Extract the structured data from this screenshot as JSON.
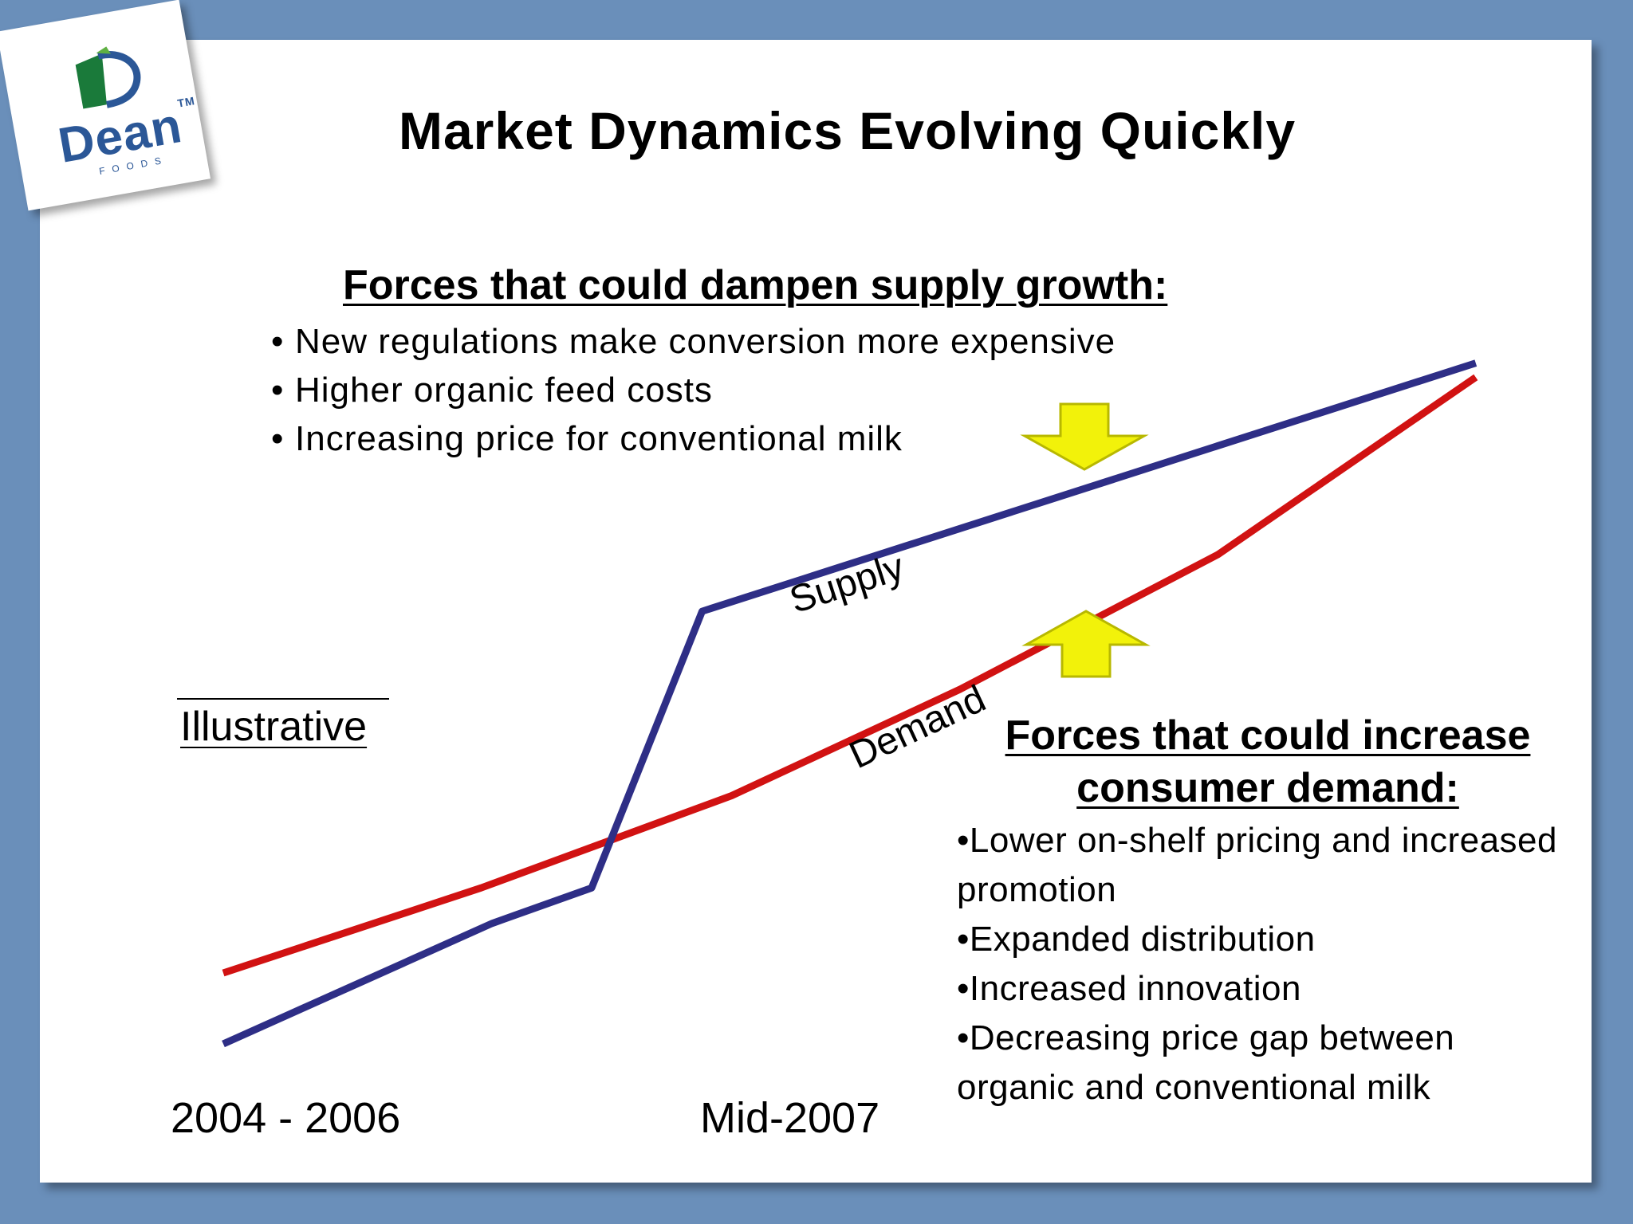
{
  "logo": {
    "brand": "Dean",
    "sub": "FOODS",
    "tm": "TM"
  },
  "title": "Market Dynamics Evolving Quickly",
  "supply_forces": {
    "heading": "Forces that could dampen supply growth:",
    "items": [
      "New regulations make conversion more expensive",
      "Higher organic feed costs",
      "Increasing price for conventional milk"
    ]
  },
  "demand_forces": {
    "heading": "Forces that could increase consumer demand:",
    "items": [
      "Lower on-shelf pricing and increased promotion",
      "Expanded distribution",
      "Increased innovation",
      "Decreasing price gap between organic and conventional milk"
    ]
  },
  "illustrative_label": "Illustrative",
  "colors": {
    "supply": "#2e2e86",
    "demand": "#d11212",
    "arrow": "#f2f20a",
    "background": "#6a8fba"
  },
  "chart_data": {
    "type": "line",
    "x_ticks": [
      "2004 - 2006",
      "Mid-2007"
    ],
    "series": [
      {
        "name": "Supply",
        "points": [
          [
            0,
            0
          ],
          [
            0.73,
            1.7
          ],
          [
            1.0,
            2.2
          ],
          [
            1.3,
            6.1
          ],
          [
            3.4,
            9.6
          ]
        ]
      },
      {
        "name": "Demand",
        "points": [
          [
            0,
            1.0
          ],
          [
            0.7,
            2.2
          ],
          [
            1.38,
            3.5
          ],
          [
            2.0,
            5.0
          ],
          [
            2.7,
            6.9
          ],
          [
            3.4,
            9.4
          ]
        ]
      }
    ],
    "arrows": [
      {
        "direction": "down",
        "label": "dampen supply"
      },
      {
        "direction": "up",
        "label": "increase demand"
      }
    ],
    "grid": false,
    "legend": "inline labels on lines"
  }
}
